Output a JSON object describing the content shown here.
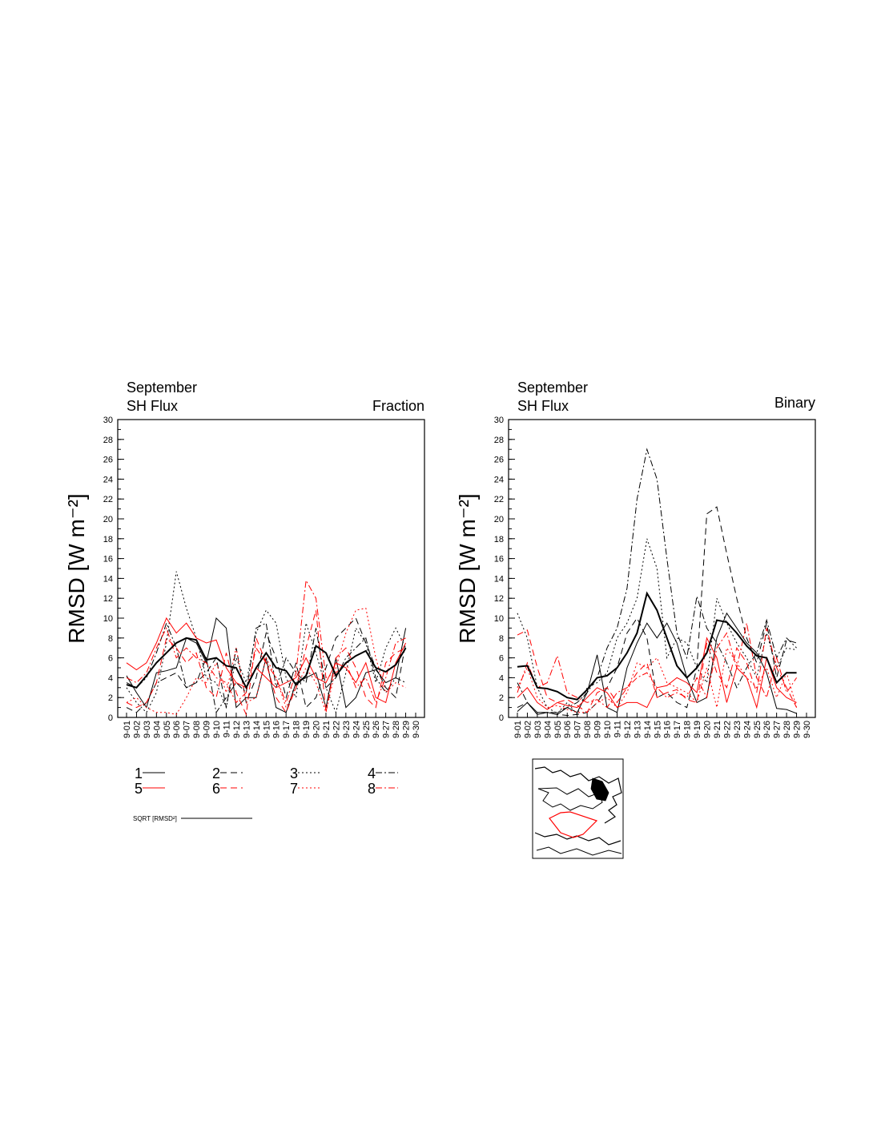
{
  "chart_data": [
    {
      "type": "line",
      "title": "September",
      "subtitle": "SH Flux",
      "label": "Fraction",
      "ylabel": "RMSD [W m⁻²]",
      "categories": [
        "9-01",
        "9-02",
        "9-03",
        "9-04",
        "9-05",
        "9-06",
        "9-07",
        "9-08",
        "9-09",
        "9-10",
        "9-11",
        "9-12",
        "9-13",
        "9-14",
        "9-15",
        "9-16",
        "9-17",
        "9-18",
        "9-19",
        "9-20",
        "9-21",
        "9-22",
        "9-23",
        "9-24",
        "9-25",
        "9-26",
        "9-27",
        "9-28",
        "9-29",
        "9-30"
      ],
      "ylim": [
        0,
        30
      ],
      "yticks": [
        0,
        2,
        4,
        6,
        8,
        10,
        12,
        14,
        16,
        18,
        20,
        22,
        24,
        26,
        28,
        30
      ],
      "series": [
        {
          "name": "1",
          "color": "#000000",
          "dash": "none",
          "values": [
            4.2,
            2.5,
            1.0,
            4.5,
            4.7,
            5.0,
            8.0,
            7.5,
            5.5,
            10.0,
            9.0,
            1.0,
            2.0,
            2.0,
            6.0,
            1.0,
            0.5,
            3.5,
            4.0,
            4.5,
            1.0,
            6.0,
            1.0,
            2.0,
            4.5,
            4.8,
            3.5,
            4.0,
            9.0,
            null
          ]
        },
        {
          "name": "2",
          "color": "#000000",
          "dash": "8,5",
          "values": [
            1.0,
            0.5,
            1.5,
            3.5,
            4.0,
            4.5,
            3.0,
            3.5,
            4.5,
            6.0,
            1.0,
            7.0,
            1.5,
            4.0,
            8.5,
            6.0,
            2.0,
            5.5,
            1.0,
            2.0,
            5.0,
            8.0,
            9.0,
            10.0,
            7.5,
            5.0,
            3.0,
            2.0,
            7.5,
            null
          ]
        },
        {
          "name": "3",
          "color": "#000000",
          "dash": "2,3",
          "values": [
            3.0,
            1.5,
            0.5,
            2.5,
            7.5,
            14.7,
            11.0,
            8.0,
            4.0,
            3.5,
            1.0,
            6.0,
            3.5,
            8.5,
            10.8,
            9.5,
            4.0,
            2.0,
            9.5,
            6.5,
            3.0,
            0.5,
            4.5,
            9.0,
            7.5,
            3.5,
            7.0,
            9.0,
            7.0,
            null
          ]
        },
        {
          "name": "4",
          "color": "#000000",
          "dash": "8,3,2,3",
          "values": [
            3.5,
            3.0,
            4.0,
            6.5,
            9.5,
            7.0,
            3.0,
            3.5,
            6.0,
            0.5,
            2.0,
            3.5,
            2.5,
            9.0,
            9.5,
            3.0,
            6.0,
            4.5,
            3.5,
            9.0,
            3.0,
            4.0,
            6.0,
            7.0,
            8.0,
            4.0,
            2.5,
            4.0,
            3.5,
            null
          ]
        },
        {
          "name": "5",
          "color": "#ff0000",
          "dash": "none",
          "values": [
            5.5,
            4.8,
            5.5,
            7.5,
            10.0,
            8.5,
            9.5,
            8.0,
            7.5,
            7.8,
            5.0,
            3.5,
            3.0,
            5.0,
            4.0,
            3.0,
            3.5,
            4.0,
            6.0,
            4.0,
            3.5,
            5.5,
            5.0,
            3.5,
            5.5,
            2.0,
            1.5,
            5.5,
            7.5,
            null
          ]
        },
        {
          "name": "6",
          "color": "#ff0000",
          "dash": "8,5",
          "values": [
            1.5,
            1.0,
            1.5,
            3.5,
            8.0,
            7.0,
            5.5,
            6.5,
            3.0,
            2.0,
            6.5,
            2.5,
            0.3,
            8.0,
            5.5,
            2.0,
            0.5,
            3.0,
            7.0,
            10.8,
            0.5,
            6.0,
            7.0,
            5.0,
            2.0,
            1.0,
            5.5,
            6.5,
            7.0,
            null
          ]
        },
        {
          "name": "7",
          "color": "#ff0000",
          "dash": "2,3",
          "values": [
            1.5,
            2.0,
            1.0,
            0.5,
            0.5,
            0.3,
            2.0,
            4.0,
            3.5,
            5.5,
            2.5,
            7.0,
            1.5,
            2.0,
            6.0,
            4.0,
            1.0,
            3.0,
            5.0,
            3.5,
            0.5,
            5.0,
            8.5,
            10.8,
            11.0,
            6.0,
            2.5,
            3.5,
            3.0,
            null
          ]
        },
        {
          "name": "8",
          "color": "#ff0000",
          "dash": "8,3,2,3",
          "values": [
            4.0,
            3.5,
            4.5,
            7.0,
            9.0,
            6.0,
            7.0,
            6.0,
            5.5,
            4.0,
            3.5,
            1.5,
            2.5,
            7.0,
            5.5,
            4.0,
            1.5,
            4.5,
            13.8,
            12.0,
            4.0,
            4.5,
            5.5,
            3.0,
            4.0,
            1.5,
            4.0,
            7.5,
            8.0,
            null
          ]
        },
        {
          "name": "SQRT [RMSD²]",
          "color": "#000000",
          "dash": "none",
          "width": 2,
          "values": [
            3.3,
            3.0,
            4.2,
            5.5,
            6.5,
            7.5,
            8.0,
            7.8,
            5.8,
            6.0,
            5.2,
            5.0,
            3.0,
            5.0,
            6.5,
            5.0,
            4.7,
            3.3,
            4.2,
            7.2,
            6.5,
            4.2,
            5.5,
            6.2,
            6.7,
            5.0,
            4.6,
            5.3,
            7.0,
            null
          ]
        }
      ]
    },
    {
      "type": "line",
      "title": "September",
      "subtitle": "SH Flux",
      "label": "Binary",
      "ylabel": "RMSD [W m⁻²]",
      "categories": [
        "9-01",
        "9-02",
        "9-03",
        "9-04",
        "9-05",
        "9-06",
        "9-07",
        "9-08",
        "9-09",
        "9-10",
        "9-11",
        "9-12",
        "9-13",
        "9-14",
        "9-15",
        "9-16",
        "9-17",
        "9-18",
        "9-19",
        "9-20",
        "9-21",
        "9-22",
        "9-23",
        "9-24",
        "9-25",
        "9-26",
        "9-27",
        "9-28",
        "9-29",
        "9-30"
      ],
      "ylim": [
        0,
        30
      ],
      "yticks": [
        0,
        2,
        4,
        6,
        8,
        10,
        12,
        14,
        16,
        18,
        20,
        22,
        24,
        26,
        28,
        30
      ],
      "series": [
        {
          "color": "#000000",
          "dash": "none",
          "values": [
            0.6,
            1.5,
            0.5,
            0.5,
            0.3,
            1.0,
            0.5,
            2.5,
            6.3,
            1.0,
            0.5,
            5.0,
            7.5,
            9.5,
            8.0,
            9.5,
            7.5,
            4.0,
            1.5,
            2.0,
            8.0,
            10.5,
            9.0,
            7.5,
            6.5,
            4.5,
            0.9,
            0.8,
            0.4,
            null
          ]
        },
        {
          "color": "#000000",
          "dash": "8,5",
          "values": [
            1.0,
            1.5,
            0.3,
            0.5,
            0.3,
            0.2,
            0.3,
            0.5,
            1.5,
            3.0,
            5.0,
            8.5,
            10.0,
            8.0,
            2.0,
            2.5,
            1.5,
            1.0,
            5.0,
            20.5,
            21.2,
            16.5,
            12.0,
            8.0,
            5.5,
            9.5,
            4.0,
            7.8,
            7.5,
            null
          ]
        },
        {
          "color": "#000000",
          "dash": "2,3",
          "values": [
            10.5,
            8.0,
            3.0,
            1.0,
            0.4,
            1.5,
            0.3,
            3.0,
            3.5,
            4.5,
            8.0,
            9.5,
            12.0,
            18.0,
            15.0,
            6.0,
            8.0,
            7.5,
            5.0,
            3.5,
            12.0,
            9.5,
            7.5,
            6.0,
            4.0,
            8.5,
            5.0,
            7.0,
            6.8,
            null
          ]
        },
        {
          "color": "#000000",
          "dash": "8,3,2,3",
          "values": [
            3.5,
            1.5,
            0.3,
            0.5,
            0.5,
            1.0,
            1.5,
            2.5,
            4.0,
            7.0,
            9.0,
            13.0,
            22.0,
            27.0,
            24.0,
            16.0,
            8.5,
            6.0,
            12.2,
            9.0,
            7.5,
            5.5,
            3.0,
            5.0,
            6.5,
            9.8,
            6.0,
            8.0,
            7.0,
            null
          ]
        },
        {
          "color": "#ff0000",
          "dash": "none",
          "values": [
            2.0,
            3.0,
            1.5,
            0.8,
            1.5,
            1.2,
            1.0,
            2.0,
            3.0,
            2.5,
            1.0,
            1.5,
            1.5,
            1.0,
            3.0,
            3.2,
            4.0,
            3.5,
            2.5,
            8.0,
            6.0,
            1.5,
            5.0,
            4.0,
            1.0,
            6.0,
            3.0,
            2.0,
            1.5,
            null
          ]
        },
        {
          "color": "#ff0000",
          "dash": "8,5",
          "values": [
            8.3,
            8.8,
            5.0,
            2.0,
            1.5,
            1.8,
            1.2,
            0.5,
            2.5,
            3.0,
            1.5,
            3.0,
            4.5,
            5.5,
            2.0,
            2.5,
            2.8,
            1.8,
            1.5,
            7.5,
            4.5,
            3.0,
            7.0,
            5.5,
            2.5,
            9.0,
            5.0,
            3.0,
            1.0,
            null
          ]
        },
        {
          "color": "#ff0000",
          "dash": "2,3",
          "values": [
            3.0,
            5.0,
            2.0,
            1.0,
            1.2,
            0.8,
            0.5,
            0.5,
            1.5,
            2.0,
            1.0,
            2.5,
            5.5,
            5.0,
            6.0,
            3.5,
            3.0,
            2.5,
            1.5,
            5.0,
            1.0,
            7.0,
            5.5,
            4.0,
            3.0,
            5.0,
            2.0,
            4.5,
            1.0,
            null
          ]
        },
        {
          "color": "#ff0000",
          "dash": "8,3,2,3",
          "values": [
            2.5,
            5.5,
            3.0,
            3.5,
            6.2,
            2.5,
            2.0,
            1.5,
            1.8,
            1.0,
            2.5,
            3.0,
            4.0,
            4.5,
            3.0,
            2.0,
            2.5,
            2.0,
            4.0,
            2.0,
            7.0,
            8.5,
            5.0,
            9.5,
            4.0,
            2.0,
            6.0,
            2.5,
            4.0,
            null
          ]
        },
        {
          "color": "#000000",
          "dash": "none",
          "width": 2,
          "values": [
            5.1,
            5.2,
            3.0,
            2.9,
            2.6,
            2.0,
            1.8,
            2.8,
            4.0,
            4.2,
            5.0,
            6.5,
            8.5,
            12.5,
            10.8,
            8.0,
            5.2,
            4.0,
            5.0,
            6.5,
            9.8,
            9.6,
            8.5,
            7.2,
            6.2,
            6.0,
            3.5,
            4.5,
            4.5,
            null
          ]
        }
      ]
    }
  ]
}
